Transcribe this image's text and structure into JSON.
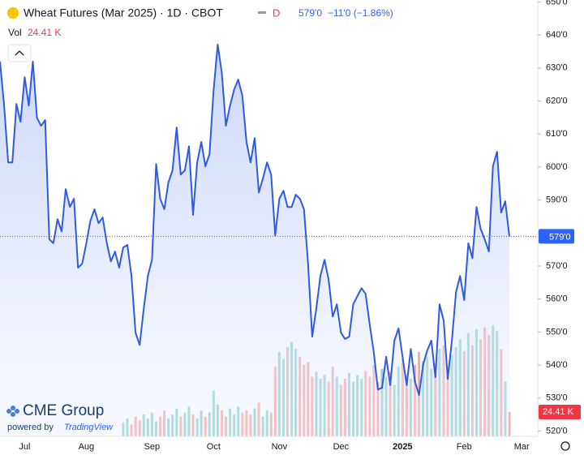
{
  "chart_data": {
    "type": "area",
    "title": "Wheat Futures (Mar 2025) · 1D · CBOT",
    "interval_badge": "D",
    "last_label": "579'0",
    "change": "−11'0 (−1.86%)",
    "color": "#2f5be0",
    "categories": [
      null,
      null,
      null,
      null,
      null,
      null,
      "Jul",
      null,
      null,
      null,
      null,
      null,
      null,
      null,
      null,
      null,
      null,
      null,
      null,
      null,
      null,
      "Aug",
      null,
      null,
      null,
      null,
      null,
      null,
      null,
      null,
      null,
      null,
      null,
      null,
      null,
      null,
      null,
      "Sep",
      null,
      null,
      null,
      null,
      null,
      null,
      null,
      null,
      null,
      null,
      null,
      null,
      null,
      null,
      "Oct",
      null,
      null,
      null,
      null,
      null,
      null,
      null,
      null,
      null,
      null,
      null,
      null,
      null,
      null,
      null,
      "Nov",
      null,
      null,
      null,
      null,
      null,
      null,
      null,
      null,
      null,
      null,
      null,
      null,
      null,
      null,
      "Dec",
      null,
      null,
      null,
      null,
      null,
      null,
      null,
      null,
      null,
      null,
      null,
      null,
      null,
      null,
      "2025",
      null,
      null,
      null,
      null,
      null,
      null,
      null,
      null,
      null,
      null,
      null,
      null,
      null,
      null,
      "Feb",
      null,
      null,
      null,
      null,
      null,
      null,
      null,
      null,
      null,
      null,
      null,
      null,
      null,
      "Mar",
      null,
      null
    ],
    "values": [
      632,
      618.6,
      601.4,
      601.4,
      619.1,
      613.7,
      627.2,
      618.6,
      632,
      614.9,
      612.5,
      614.2,
      578.1,
      576.9,
      584.2,
      580.5,
      593.3,
      587.9,
      590.4,
      569.5,
      570.7,
      576.9,
      583.7,
      587.2,
      583,
      584.7,
      576.9,
      571.4,
      574.4,
      569.5,
      575.6,
      576.4,
      567,
      549.8,
      546.1,
      557.2,
      567,
      571.9,
      600.9,
      590.4,
      587.2,
      595.3,
      599,
      612,
      597.7,
      599,
      606.3,
      585.5,
      601.4,
      607.6,
      600.2,
      603.9,
      623.5,
      637.1,
      628.5,
      612.5,
      618.6,
      623.5,
      626.5,
      621.6,
      607.6,
      601.4,
      608.8,
      592.3,
      596.5,
      601.4,
      597.7,
      579.3,
      590.4,
      592.8,
      587.9,
      587.9,
      591.6,
      590.4,
      587.2,
      570.7,
      548.6,
      557.2,
      567,
      571.9,
      565.8,
      554.7,
      558.4,
      549.8,
      547.9,
      548.6,
      558.4,
      560.9,
      563.3,
      561.6,
      552.3,
      543.7,
      532.6,
      533.1,
      542.5,
      533.9,
      547.4,
      551.1,
      542.5,
      533.9,
      544.9,
      535.1,
      530.9,
      540,
      544.4,
      547.4,
      536.3,
      558.4,
      553.5,
      535.8,
      547.4,
      562.1,
      567,
      559.7,
      576.9,
      572.4,
      587.9,
      581.3,
      578.1,
      574.4,
      600.2,
      604.6,
      586.2,
      589.6,
      579,
      null,
      null,
      null,
      null,
      null
    ],
    "ylim": [
      518.4,
      650.6
    ],
    "yticks": [
      {
        "value": 650,
        "label": "650'0"
      },
      {
        "value": 640,
        "label": "640'0"
      },
      {
        "value": 630,
        "label": "630'0"
      },
      {
        "value": 620,
        "label": "620'0"
      },
      {
        "value": 610,
        "label": "610'0"
      },
      {
        "value": 600,
        "label": "600'0"
      },
      {
        "value": 590,
        "label": "590'0"
      },
      {
        "value": 580,
        "label": "580'0"
      },
      {
        "value": 570,
        "label": "570'0"
      },
      {
        "value": 560,
        "label": "560'0"
      },
      {
        "value": 550,
        "label": "550'0"
      },
      {
        "value": 540,
        "label": "540'0"
      },
      {
        "value": 530,
        "label": "530'0"
      },
      {
        "value": 520,
        "label": "520'0"
      }
    ],
    "volume": {
      "label": "Vol",
      "value_label": "24.41 K",
      "up_color": "rgba(38,166,154,0.5)",
      "down_color": "rgba(239,83,80,0.5)",
      "ylim": [
        0,
        440
      ],
      "values": [
        null,
        null,
        null,
        null,
        null,
        null,
        null,
        null,
        null,
        null,
        null,
        null,
        null,
        null,
        null,
        null,
        null,
        null,
        null,
        null,
        null,
        null,
        null,
        null,
        null,
        null,
        null,
        null,
        null,
        null,
        14,
        18,
        12,
        20,
        16,
        22,
        18,
        24,
        15,
        20,
        26,
        18,
        22,
        28,
        20,
        24,
        30,
        22,
        18,
        26,
        20,
        24,
        46,
        32,
        26,
        20,
        28,
        22,
        30,
        24,
        26,
        22,
        28,
        34,
        20,
        26,
        24,
        70,
        85,
        78,
        90,
        95,
        88,
        80,
        72,
        75,
        60,
        65,
        58,
        62,
        55,
        70,
        60,
        52,
        58,
        64,
        55,
        62,
        58,
        66,
        60,
        72,
        55,
        68,
        60,
        65,
        52,
        70,
        78,
        62,
        58,
        72,
        85,
        76,
        80,
        68,
        74,
        88,
        92,
        70,
        82,
        90,
        98,
        86,
        104,
        92,
        108,
        98,
        110,
        102,
        112,
        106,
        88,
        55,
        24.41,
        null,
        null,
        null,
        null,
        null
      ]
    },
    "logo": {
      "name": "CME Group",
      "powered": "powered by",
      "brand": "TradingView"
    }
  }
}
